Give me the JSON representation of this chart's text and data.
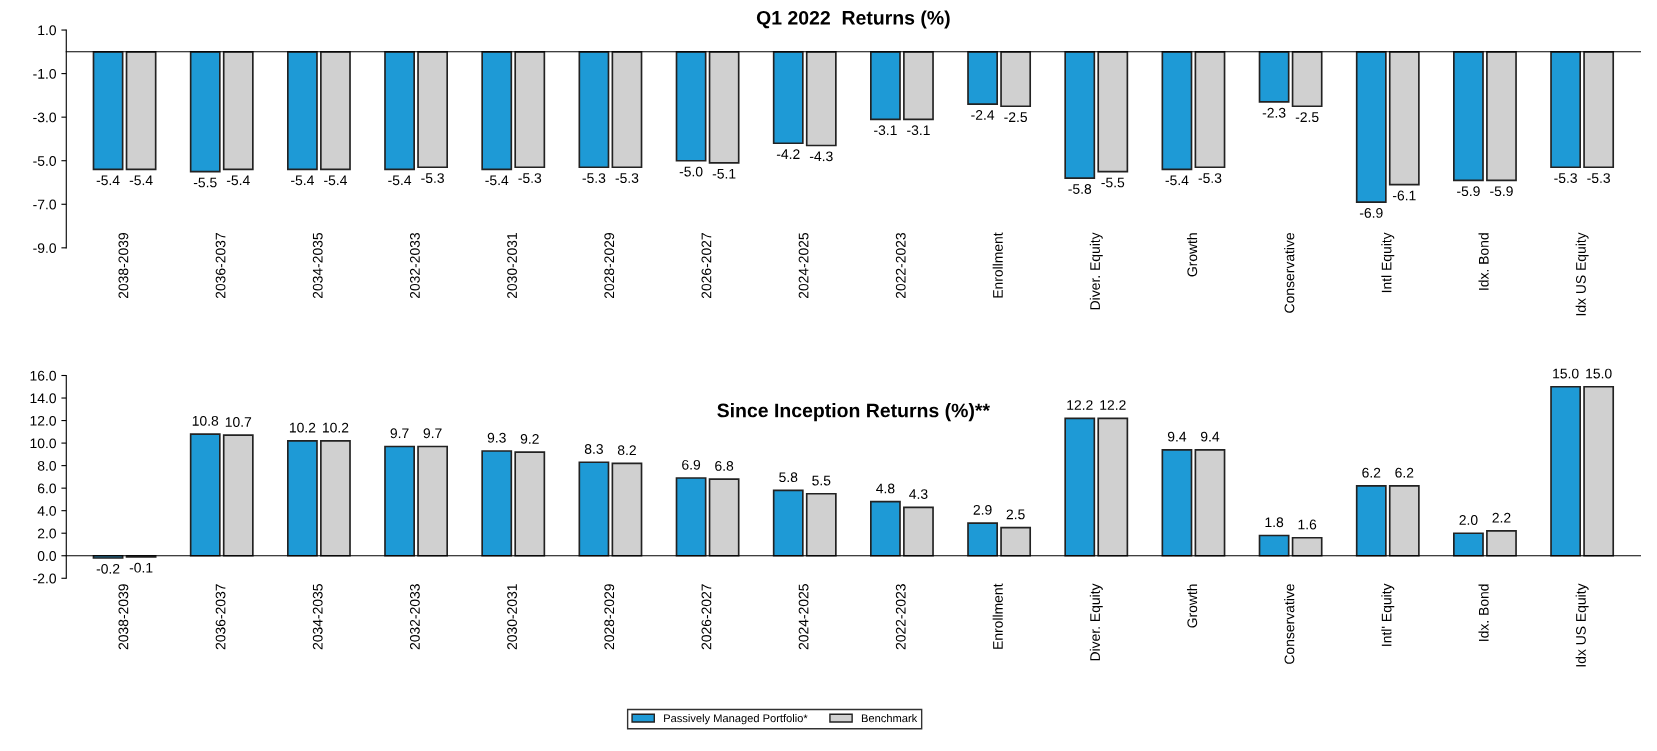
{
  "chart_data": [
    {
      "type": "bar",
      "title": "Q1 2022  Returns (%)",
      "categories": [
        "2038-2039",
        "2036-2037",
        "2034-2035",
        "2032-2033",
        "2030-2031",
        "2028-2029",
        "2026-2027",
        "2024-2025",
        "2022-2023",
        "Enrollment",
        "Diver. Equity",
        "Growth",
        "Conservative",
        "Intl Equity",
        "Idx. Bond",
        "Idx US Equity"
      ],
      "series": [
        {
          "color": "#1e9ad6",
          "values": [
            -5.4,
            -5.5,
            -5.4,
            -5.4,
            -5.4,
            -5.3,
            -5.0,
            -4.2,
            -3.1,
            -2.4,
            -5.8,
            -5.4,
            -2.3,
            -6.9,
            -5.9,
            -5.3
          ],
          "value_labels": [
            "-5.4",
            "-5.5",
            "-5.4",
            "-5.4",
            "-5.4",
            "-5.3",
            "-5.0",
            "-4.2",
            "-3.1",
            "-2.4",
            "-5.8",
            "-5.4",
            "-2.3",
            "-6.9",
            "-5.9",
            "-5.3"
          ]
        },
        {
          "color": "#d0d0d0",
          "values": [
            -5.4,
            -5.4,
            -5.4,
            -5.3,
            -5.3,
            -5.3,
            -5.1,
            -4.3,
            -3.1,
            -2.5,
            -5.5,
            -5.3,
            -2.5,
            -6.1,
            -5.9,
            -5.3
          ],
          "value_labels": [
            "-5.4",
            "-5.4",
            "-5.4",
            "-5.3",
            "-5.3",
            "-5.3",
            "-5.1",
            "-4.3",
            "-3.1",
            "-2.5",
            "-5.5",
            "-5.3",
            "-2.5",
            "-6.1",
            "-5.9",
            "-5.3"
          ]
        }
      ],
      "ylim": [
        -9,
        1
      ],
      "yticks": [
        {
          "value": -9,
          "label": "-9.0"
        },
        {
          "value": -7,
          "label": "-7.0"
        },
        {
          "value": -5,
          "label": "-5.0"
        },
        {
          "value": -3,
          "label": "-3.0"
        },
        {
          "value": -1,
          "label": "-1.0"
        },
        {
          "value": 1,
          "label": "1.0"
        }
      ],
      "grid": false
    },
    {
      "type": "bar",
      "title": "Since Inception Returns (%)**",
      "categories": [
        "2038-2039",
        "2036-2037",
        "2034-2035",
        "2032-2033",
        "2030-2031",
        "2028-2029",
        "2026-2027",
        "2024-2025",
        "2022-2023",
        "Enrollment",
        "Diver. Equity",
        "Growth",
        "Conservative",
        "Intl' Equity",
        "Idx. Bond",
        "Idx US Equity"
      ],
      "series": [
        {
          "name": "Passively Managed Portfolio*",
          "color": "#1e9ad6",
          "values": [
            -0.2,
            10.8,
            10.2,
            9.7,
            9.3,
            8.3,
            6.9,
            5.8,
            4.8,
            2.9,
            12.2,
            9.4,
            1.8,
            6.2,
            2.0,
            15.0
          ],
          "value_labels": [
            "-0.2",
            "10.8",
            "10.2",
            "9.7",
            "9.3",
            "8.3",
            "6.9",
            "5.8",
            "4.8",
            "2.9",
            "12.2",
            "9.4",
            "1.8",
            "6.2",
            "2.0",
            "15.0"
          ]
        },
        {
          "name": "Benchmark",
          "color": "#d0d0d0",
          "values": [
            -0.1,
            10.7,
            10.2,
            9.7,
            9.2,
            8.2,
            6.8,
            5.5,
            4.3,
            2.5,
            12.2,
            9.4,
            1.6,
            6.2,
            2.2,
            15.0
          ],
          "value_labels": [
            "-0.1",
            "10.7",
            "10.2",
            "9.7",
            "9.2",
            "8.2",
            "6.8",
            "5.5",
            "4.3",
            "2.5",
            "12.2",
            "9.4",
            "1.6",
            "6.2",
            "2.2",
            "15.0"
          ]
        }
      ],
      "ylim": [
        -2,
        16
      ],
      "yticks": [
        {
          "value": -2,
          "label": "-2.0"
        },
        {
          "value": 0,
          "label": "0.0"
        },
        {
          "value": 2,
          "label": "2.0"
        },
        {
          "value": 4,
          "label": "4.0"
        },
        {
          "value": 6,
          "label": "6.0"
        },
        {
          "value": 8,
          "label": "8.0"
        },
        {
          "value": 10,
          "label": "10.0"
        },
        {
          "value": 12,
          "label": "12.0"
        },
        {
          "value": 14,
          "label": "14.0"
        },
        {
          "value": 16,
          "label": "16.0"
        }
      ],
      "grid": false,
      "legend": "bottom"
    }
  ]
}
